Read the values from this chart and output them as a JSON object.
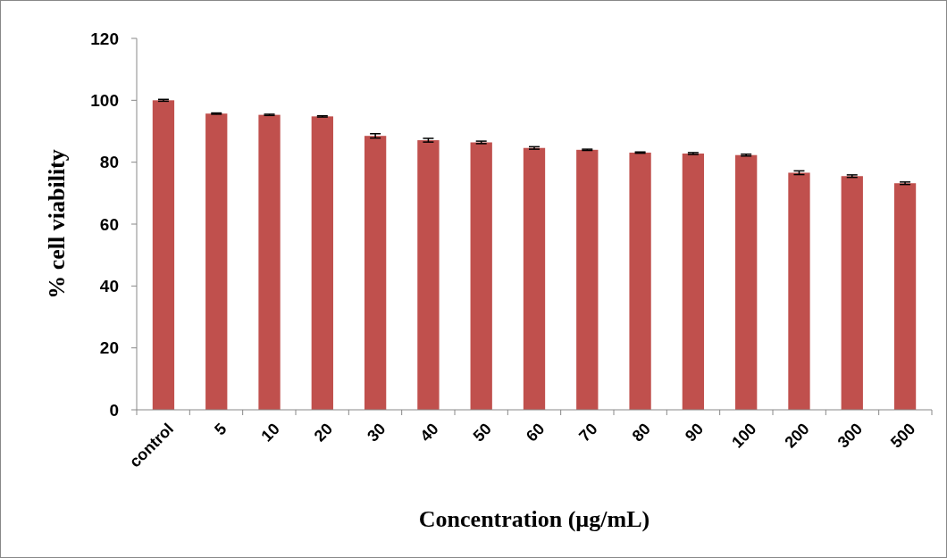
{
  "chart_data": {
    "type": "bar",
    "xlabel": "Concentration (µg/mL)",
    "ylabel": "% cell viability",
    "categories": [
      "control",
      "5",
      "10",
      "20",
      "30",
      "40",
      "50",
      "60",
      "70",
      "80",
      "90",
      "100",
      "200",
      "300",
      "500"
    ],
    "values": [
      100,
      95.7,
      95.3,
      94.8,
      88.5,
      87.1,
      86.4,
      84.6,
      84.0,
      83.1,
      82.8,
      82.3,
      76.6,
      75.5,
      73.2
    ],
    "errors": [
      0.3,
      0.2,
      0.2,
      0.2,
      0.7,
      0.6,
      0.4,
      0.4,
      0.2,
      0.2,
      0.3,
      0.3,
      0.6,
      0.4,
      0.4
    ],
    "color": "#c0504d",
    "ylim": [
      0,
      120
    ],
    "yticks": [
      0,
      20,
      40,
      60,
      80,
      100,
      120
    ],
    "grid": false
  }
}
